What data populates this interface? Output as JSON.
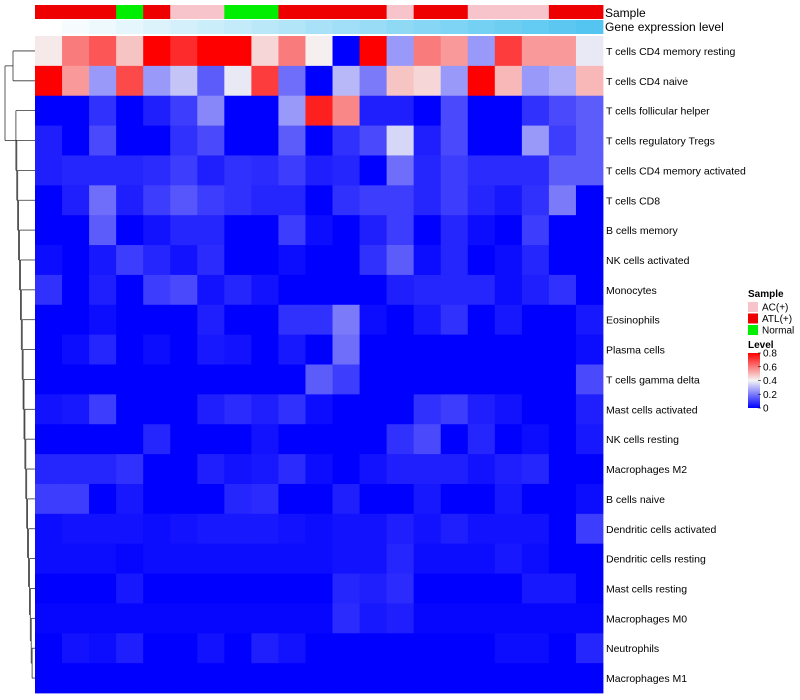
{
  "chart_data": {
    "type": "heatmap",
    "annotation_labels": [
      "Sample",
      "Gene expression level"
    ],
    "sample_annotation": [
      "ATL(+)",
      "ATL(+)",
      "ATL(+)",
      "Normal",
      "ATL(+)",
      "AC(+)",
      "AC(+)",
      "Normal",
      "Normal",
      "ATL(+)",
      "ATL(+)",
      "ATL(+)",
      "ATL(+)",
      "AC(+)",
      "ATL(+)",
      "ATL(+)",
      "AC(+)",
      "AC(+)",
      "AC(+)",
      "ATL(+)",
      "ATL(+)"
    ],
    "expression_annotation": [
      0.0,
      0.05,
      0.1,
      0.15,
      0.2,
      0.25,
      0.3,
      0.35,
      0.4,
      0.45,
      0.5,
      0.55,
      0.6,
      0.65,
      0.7,
      0.75,
      0.8,
      0.85,
      0.9,
      0.95,
      1.0
    ],
    "rows": [
      {
        "name": "T cells CD4 memory resting",
        "values": [
          0.42,
          0.6,
          0.66,
          0.48,
          0.8,
          0.73,
          0.8,
          0.8,
          0.45,
          0.6,
          0.41,
          0.0,
          0.8,
          0.25,
          0.6,
          0.55,
          0.25,
          0.7,
          0.55,
          0.55,
          0.38
        ]
      },
      {
        "name": "T cells CD4 naive",
        "values": [
          0.8,
          0.55,
          0.25,
          0.68,
          0.25,
          0.32,
          0.15,
          0.38,
          0.7,
          0.18,
          0.0,
          0.3,
          0.2,
          0.48,
          0.45,
          0.25,
          0.8,
          0.5,
          0.25,
          0.28,
          0.5
        ]
      },
      {
        "name": "T cells follicular helper",
        "values": [
          0.0,
          0.0,
          0.08,
          0.0,
          0.05,
          0.1,
          0.22,
          0.0,
          0.0,
          0.25,
          0.75,
          0.58,
          0.05,
          0.05,
          0.0,
          0.12,
          0.0,
          0.0,
          0.08,
          0.12,
          0.15
        ]
      },
      {
        "name": "T cells regulatory  Tregs",
        "values": [
          0.05,
          0.0,
          0.12,
          0.0,
          0.0,
          0.08,
          0.12,
          0.0,
          0.0,
          0.15,
          0.0,
          0.08,
          0.12,
          0.35,
          0.05,
          0.12,
          0.0,
          0.0,
          0.25,
          0.1,
          0.15
        ]
      },
      {
        "name": "T cells CD4 memory activated",
        "values": [
          0.05,
          0.06,
          0.06,
          0.06,
          0.07,
          0.1,
          0.05,
          0.08,
          0.07,
          0.1,
          0.05,
          0.06,
          0.0,
          0.18,
          0.06,
          0.1,
          0.07,
          0.07,
          0.07,
          0.15,
          0.15
        ]
      },
      {
        "name": "T cells CD8",
        "values": [
          0.0,
          0.05,
          0.18,
          0.05,
          0.1,
          0.14,
          0.1,
          0.08,
          0.06,
          0.06,
          0.0,
          0.08,
          0.1,
          0.1,
          0.06,
          0.1,
          0.06,
          0.04,
          0.08,
          0.2,
          0.0
        ]
      },
      {
        "name": "B cells memory",
        "values": [
          0.0,
          0.0,
          0.15,
          0.0,
          0.03,
          0.06,
          0.06,
          0.0,
          0.0,
          0.1,
          0.02,
          0.0,
          0.05,
          0.1,
          0.0,
          0.06,
          0.02,
          0.0,
          0.1,
          0.0,
          0.0
        ]
      },
      {
        "name": "NK cells activated",
        "values": [
          0.02,
          0.0,
          0.04,
          0.1,
          0.06,
          0.03,
          0.07,
          0.0,
          0.0,
          0.02,
          0.0,
          0.0,
          0.08,
          0.15,
          0.02,
          0.06,
          0.0,
          0.02,
          0.06,
          0.0,
          0.0
        ]
      },
      {
        "name": "Monocytes",
        "values": [
          0.08,
          0.0,
          0.05,
          0.0,
          0.1,
          0.12,
          0.03,
          0.06,
          0.03,
          0.0,
          0.0,
          0.0,
          0.0,
          0.05,
          0.06,
          0.06,
          0.06,
          0.02,
          0.05,
          0.08,
          0.0
        ]
      },
      {
        "name": "Eosinophils",
        "values": [
          0.0,
          0.0,
          0.02,
          0.0,
          0.0,
          0.0,
          0.05,
          0.0,
          0.0,
          0.08,
          0.08,
          0.2,
          0.02,
          0.0,
          0.04,
          0.08,
          0.0,
          0.04,
          0.0,
          0.0,
          0.04
        ]
      },
      {
        "name": "Plasma cells",
        "values": [
          0.0,
          0.02,
          0.06,
          0.0,
          0.02,
          0.0,
          0.04,
          0.03,
          0.0,
          0.04,
          0.0,
          0.18,
          0.0,
          0.0,
          0.0,
          0.0,
          0.0,
          0.0,
          0.0,
          0.0,
          0.02
        ]
      },
      {
        "name": "T cells gamma delta",
        "values": [
          0.0,
          0.0,
          0.0,
          0.0,
          0.0,
          0.0,
          0.0,
          0.0,
          0.0,
          0.0,
          0.15,
          0.1,
          0.0,
          0.0,
          0.0,
          0.0,
          0.0,
          0.0,
          0.0,
          0.0,
          0.12
        ]
      },
      {
        "name": "Mast cells activated",
        "values": [
          0.03,
          0.04,
          0.1,
          0.0,
          0.0,
          0.0,
          0.05,
          0.07,
          0.05,
          0.08,
          0.02,
          0.0,
          0.0,
          0.0,
          0.08,
          0.1,
          0.05,
          0.03,
          0.0,
          0.0,
          0.05
        ]
      },
      {
        "name": "NK cells resting",
        "values": [
          0.0,
          0.0,
          0.0,
          0.0,
          0.06,
          0.0,
          0.0,
          0.0,
          0.03,
          0.0,
          0.0,
          0.0,
          0.0,
          0.08,
          0.12,
          0.0,
          0.06,
          0.0,
          0.02,
          0.0,
          0.04
        ]
      },
      {
        "name": "Macrophages M2",
        "values": [
          0.06,
          0.06,
          0.06,
          0.08,
          0.0,
          0.0,
          0.05,
          0.03,
          0.04,
          0.07,
          0.02,
          0.0,
          0.03,
          0.05,
          0.05,
          0.05,
          0.03,
          0.05,
          0.06,
          0.0,
          0.0
        ]
      },
      {
        "name": "B cells naive",
        "values": [
          0.1,
          0.1,
          0.0,
          0.04,
          0.0,
          0.0,
          0.0,
          0.06,
          0.07,
          0.0,
          0.0,
          0.05,
          0.0,
          0.0,
          0.04,
          0.0,
          0.0,
          0.04,
          0.0,
          0.0,
          0.02
        ]
      },
      {
        "name": "Dendritic cells activated",
        "values": [
          0.02,
          0.03,
          0.03,
          0.03,
          0.02,
          0.03,
          0.04,
          0.04,
          0.04,
          0.03,
          0.02,
          0.03,
          0.03,
          0.05,
          0.03,
          0.05,
          0.03,
          0.03,
          0.03,
          0.0,
          0.1
        ]
      },
      {
        "name": "Dendritic cells resting",
        "values": [
          0.02,
          0.02,
          0.02,
          0.01,
          0.02,
          0.02,
          0.02,
          0.02,
          0.02,
          0.02,
          0.02,
          0.03,
          0.03,
          0.06,
          0.02,
          0.02,
          0.02,
          0.04,
          0.02,
          0.0,
          0.0
        ]
      },
      {
        "name": "Mast cells resting",
        "values": [
          0.0,
          0.0,
          0.0,
          0.04,
          0.0,
          0.0,
          0.0,
          0.0,
          0.0,
          0.0,
          0.0,
          0.06,
          0.05,
          0.07,
          0.0,
          0.0,
          0.0,
          0.0,
          0.04,
          0.04,
          0.0
        ]
      },
      {
        "name": "Macrophages M0",
        "values": [
          0.01,
          0.01,
          0.01,
          0.01,
          0.01,
          0.01,
          0.01,
          0.01,
          0.01,
          0.01,
          0.01,
          0.07,
          0.04,
          0.05,
          0.01,
          0.01,
          0.01,
          0.01,
          0.01,
          0.01,
          0.01
        ]
      },
      {
        "name": "Neutrophils",
        "values": [
          0.0,
          0.03,
          0.02,
          0.05,
          0.0,
          0.0,
          0.03,
          0.0,
          0.05,
          0.03,
          0.0,
          0.0,
          0.0,
          0.0,
          0.0,
          0.0,
          0.0,
          0.02,
          0.02,
          0.0,
          0.06
        ]
      },
      {
        "name": "Macrophages M1",
        "values": [
          0.0,
          0.0,
          0.0,
          0.0,
          0.0,
          0.0,
          0.0,
          0.0,
          0.0,
          0.0,
          0.0,
          0.0,
          0.0,
          0.0,
          0.0,
          0.0,
          0.0,
          0.0,
          0.0,
          0.0,
          0.0
        ]
      }
    ],
    "legend": {
      "sample_title": "Sample",
      "sample_entries": [
        {
          "label": "AC(+)",
          "color": "#f7c4cc"
        },
        {
          "label": "ATL(+)",
          "color": "#ee0000"
        },
        {
          "label": "Normal",
          "color": "#00ee00"
        }
      ],
      "level_title": "Level",
      "level_ticks": [
        "0.8",
        "0.6",
        "0.4",
        "0.2",
        "0"
      ],
      "level_tick_values": [
        0.8,
        0.6,
        0.4,
        0.2,
        0.0
      ],
      "level_range": [
        0,
        0.8
      ]
    },
    "colors": {
      "low": "#0000ff",
      "mid": "#f5f5f5",
      "high": "#ff0000",
      "expr_low": "#ffffff",
      "expr_high": "#53c5f0"
    }
  }
}
